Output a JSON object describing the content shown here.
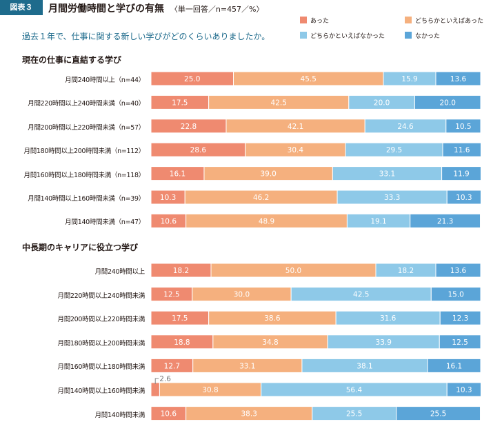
{
  "figure": {
    "badge": "図表３",
    "title": "月間労働時間と学びの有無",
    "note": "〈単一回答／n=457／%〉",
    "question": "過去１年で、仕事に関する新しい学びがどのくらいありましたか。"
  },
  "legend": [
    {
      "label": "あった",
      "color": "#ef8a70"
    },
    {
      "label": "どちらかといえばあった",
      "color": "#f5b07e"
    },
    {
      "label": "どちらかといえばなかった",
      "color": "#8ec9e8"
    },
    {
      "label": "なかった",
      "color": "#5ba5d8"
    }
  ],
  "chart_data": [
    {
      "type": "bar",
      "orientation": "horizontal",
      "stacked": true,
      "title": "現在の仕事に直結する学び",
      "xlim": [
        0,
        100
      ],
      "categories": [
        "月間240時間以上（n=44）",
        "月間220時間以上240時間未満（n=40）",
        "月間200時間以上220時間未満（n=57）",
        "月間180時間以上200時間未満（n=112）",
        "月間160時間以上180時間未満（n=118）",
        "月間140時間以上160時間未満（n=39）",
        "月間140時間未満（n=47）"
      ],
      "series": [
        {
          "name": "あった",
          "values": [
            25.0,
            17.5,
            22.8,
            28.6,
            16.1,
            10.3,
            10.6
          ]
        },
        {
          "name": "どちらかといえばあった",
          "values": [
            45.5,
            42.5,
            42.1,
            30.4,
            39.0,
            46.2,
            48.9
          ]
        },
        {
          "name": "どちらかといえばなかった",
          "values": [
            15.9,
            20.0,
            24.6,
            29.5,
            33.1,
            33.3,
            19.1
          ]
        },
        {
          "name": "なかった",
          "values": [
            13.6,
            20.0,
            10.5,
            11.6,
            11.9,
            10.3,
            21.3
          ]
        }
      ]
    },
    {
      "type": "bar",
      "orientation": "horizontal",
      "stacked": true,
      "title": "中長期のキャリアに役立つ学び",
      "xlim": [
        0,
        100
      ],
      "categories": [
        "月間240時間以上",
        "月間220時間以上240時間未満",
        "月間200時間以上220時間未満",
        "月間180時間以上200時間未満",
        "月間160時間以上180時間未満",
        "月間140時間以上160時間未満",
        "月間140時間未満"
      ],
      "series": [
        {
          "name": "あった",
          "values": [
            18.2,
            12.5,
            17.5,
            18.8,
            12.7,
            2.6,
            10.6
          ]
        },
        {
          "name": "どちらかといえばあった",
          "values": [
            50.0,
            30.0,
            38.6,
            34.8,
            33.1,
            30.8,
            38.3
          ]
        },
        {
          "name": "どちらかといえばなかった",
          "values": [
            18.2,
            42.5,
            31.6,
            33.9,
            38.1,
            56.4,
            25.5
          ]
        },
        {
          "name": "なかった",
          "values": [
            13.6,
            15.0,
            12.3,
            12.5,
            16.1,
            10.3,
            25.5
          ]
        }
      ]
    }
  ]
}
